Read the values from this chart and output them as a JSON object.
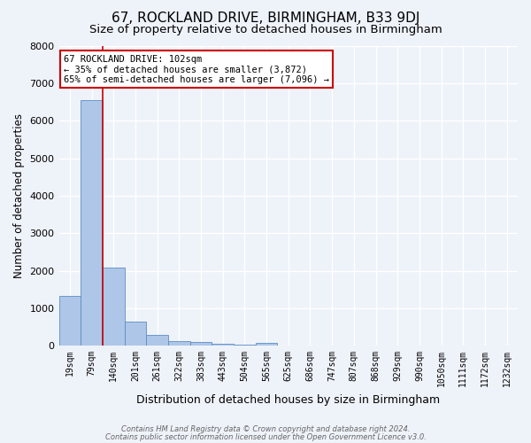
{
  "title": "67, ROCKLAND DRIVE, BIRMINGHAM, B33 9DJ",
  "subtitle": "Size of property relative to detached houses in Birmingham",
  "xlabel": "Distribution of detached houses by size in Birmingham",
  "ylabel": "Number of detached properties",
  "categories": [
    "19sqm",
    "79sqm",
    "140sqm",
    "201sqm",
    "261sqm",
    "322sqm",
    "383sqm",
    "443sqm",
    "504sqm",
    "565sqm",
    "625sqm",
    "686sqm",
    "747sqm",
    "807sqm",
    "868sqm",
    "929sqm",
    "990sqm",
    "1050sqm",
    "1111sqm",
    "1172sqm",
    "1232sqm"
  ],
  "values": [
    1320,
    6550,
    2090,
    640,
    290,
    130,
    90,
    50,
    30,
    70,
    0,
    0,
    0,
    0,
    0,
    0,
    0,
    0,
    0,
    0,
    0
  ],
  "bar_color": "#aec6e8",
  "bar_edge_color": "#5b8ec4",
  "vline_x": 1.5,
  "vline_color": "#cc0000",
  "annotation_text": "67 ROCKLAND DRIVE: 102sqm\n← 35% of detached houses are smaller (3,872)\n65% of semi-detached houses are larger (7,096) →",
  "annotation_box_facecolor": "#ffffff",
  "annotation_box_edgecolor": "#cc0000",
  "ylim": [
    0,
    8000
  ],
  "yticks": [
    0,
    1000,
    2000,
    3000,
    4000,
    5000,
    6000,
    7000,
    8000
  ],
  "footer1": "Contains HM Land Registry data © Crown copyright and database right 2024.",
  "footer2": "Contains public sector information licensed under the Open Government Licence v3.0.",
  "background_color": "#eef2f9",
  "plot_background_color": "#eef2f9",
  "grid_color": "#ffffff",
  "title_fontsize": 11,
  "subtitle_fontsize": 9.5,
  "ylabel_fontsize": 8.5,
  "xlabel_fontsize": 9,
  "tick_fontsize": 8,
  "xtick_fontsize": 7
}
